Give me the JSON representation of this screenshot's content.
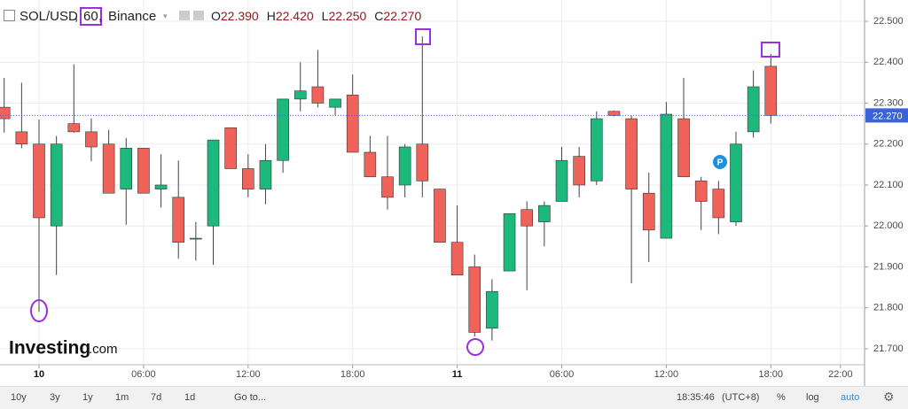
{
  "chart_data": {
    "type": "candlestick",
    "title": "SOL/USD",
    "interval": "60",
    "exchange": "Binance",
    "header_ohlc": [
      {
        "key": "O",
        "value": "22.390"
      },
      {
        "key": "H",
        "value": "22.420"
      },
      {
        "key": "L",
        "value": "22.250"
      },
      {
        "key": "C",
        "value": "22.270"
      }
    ],
    "x": [
      -2,
      -1,
      0,
      1,
      2,
      3,
      4,
      5,
      6,
      7,
      8,
      9,
      10,
      11,
      12,
      13,
      14,
      15,
      16,
      17,
      18,
      19,
      20,
      21,
      22,
      23,
      24,
      25,
      26,
      27,
      28,
      29,
      30,
      31,
      32,
      33,
      34,
      35,
      36,
      37,
      38,
      39,
      40,
      41,
      42
    ],
    "open": [
      22.29,
      22.23,
      22.2,
      22.0,
      22.25,
      22.23,
      22.2,
      22.09,
      22.19,
      22.09,
      22.07,
      21.97,
      22.0,
      22.24,
      22.14,
      22.09,
      22.16,
      22.31,
      22.34,
      22.29,
      22.32,
      22.18,
      22.12,
      22.1,
      22.2,
      22.09,
      21.96,
      21.9,
      21.75,
      21.89,
      22.04,
      22.01,
      22.06,
      22.17,
      22.11,
      22.28,
      22.262,
      22.08,
      21.97,
      22.262,
      22.11,
      22.09,
      22.01,
      22.23,
      22.39
    ],
    "high": [
      22.362,
      22.35,
      22.26,
      22.22,
      22.395,
      22.263,
      22.235,
      22.215,
      22.19,
      22.175,
      22.16,
      22.01,
      22.21,
      22.24,
      22.175,
      22.2,
      22.31,
      22.4,
      22.43,
      22.31,
      22.37,
      22.22,
      22.22,
      22.2,
      22.463,
      22.09,
      22.05,
      21.93,
      21.87,
      22.03,
      22.06,
      22.06,
      22.193,
      22.193,
      22.28,
      22.282,
      22.27,
      22.13,
      22.303,
      22.362,
      22.12,
      22.11,
      22.23,
      22.38,
      22.42
    ],
    "low": [
      22.228,
      22.19,
      21.79,
      21.88,
      22.228,
      22.158,
      22.08,
      22.003,
      22.08,
      22.045,
      21.92,
      21.915,
      21.905,
      22.14,
      22.07,
      22.053,
      22.13,
      22.28,
      22.29,
      22.27,
      22.18,
      22.12,
      22.04,
      22.07,
      22.07,
      21.96,
      21.88,
      21.73,
      21.72,
      21.89,
      21.843,
      21.95,
      22.06,
      22.07,
      22.1,
      22.268,
      21.86,
      21.912,
      21.97,
      22.12,
      21.99,
      21.98,
      22.0,
      22.216,
      22.25
    ],
    "close": [
      22.262,
      22.2,
      22.02,
      22.2,
      22.23,
      22.193,
      22.08,
      22.19,
      22.08,
      22.1,
      21.96,
      21.97,
      22.21,
      22.14,
      22.09,
      22.16,
      22.31,
      22.33,
      22.3,
      22.31,
      22.18,
      22.12,
      22.07,
      22.193,
      22.11,
      21.96,
      21.88,
      21.74,
      21.84,
      22.03,
      22.0,
      22.05,
      22.16,
      22.1,
      22.262,
      22.27,
      22.09,
      21.99,
      22.273,
      22.12,
      22.06,
      22.02,
      22.2,
      22.34,
      22.27
    ],
    "up_color": "#1db87c",
    "down_color": "#f0635a",
    "xlim": [
      -2.24,
      47.38
    ],
    "xticks": [
      {
        "value": 0,
        "label": "10"
      },
      {
        "value": 6,
        "label": "06:00"
      },
      {
        "value": 12,
        "label": "12:00"
      },
      {
        "value": 18,
        "label": "18:00"
      },
      {
        "value": 24,
        "label": "11"
      },
      {
        "value": 30,
        "label": "06:00"
      },
      {
        "value": 36,
        "label": "12:00"
      },
      {
        "value": 42,
        "label": "18:00"
      },
      {
        "value": 46,
        "label": "22:00"
      }
    ],
    "ylim": [
      21.609,
      22.552
    ],
    "yticks": [
      {
        "value": 21.7,
        "label": "21.700"
      },
      {
        "value": 21.8,
        "label": "21.800"
      },
      {
        "value": 21.9,
        "label": "21.900"
      },
      {
        "value": 22.0,
        "label": "22.000"
      },
      {
        "value": 22.1,
        "label": "22.100"
      },
      {
        "value": 22.2,
        "label": "22.200"
      },
      {
        "value": 22.3,
        "label": "22.300"
      },
      {
        "value": 22.4,
        "label": "22.400"
      },
      {
        "value": 22.5,
        "label": "22.500"
      }
    ],
    "grid": true,
    "last_price": {
      "value": 22.27,
      "label": "22.270"
    },
    "annotations": [
      "P"
    ],
    "logo": {
      "brand": "Investing",
      "suffix": ".com"
    }
  },
  "toolbar": {
    "ranges": [
      "10y",
      "3y",
      "1y",
      "1m",
      "7d",
      "1d"
    ],
    "goto": "Go to...",
    "clock": "18:35:46",
    "timezone": "(UTC+8)",
    "options": [
      "%",
      "log",
      "auto"
    ]
  }
}
